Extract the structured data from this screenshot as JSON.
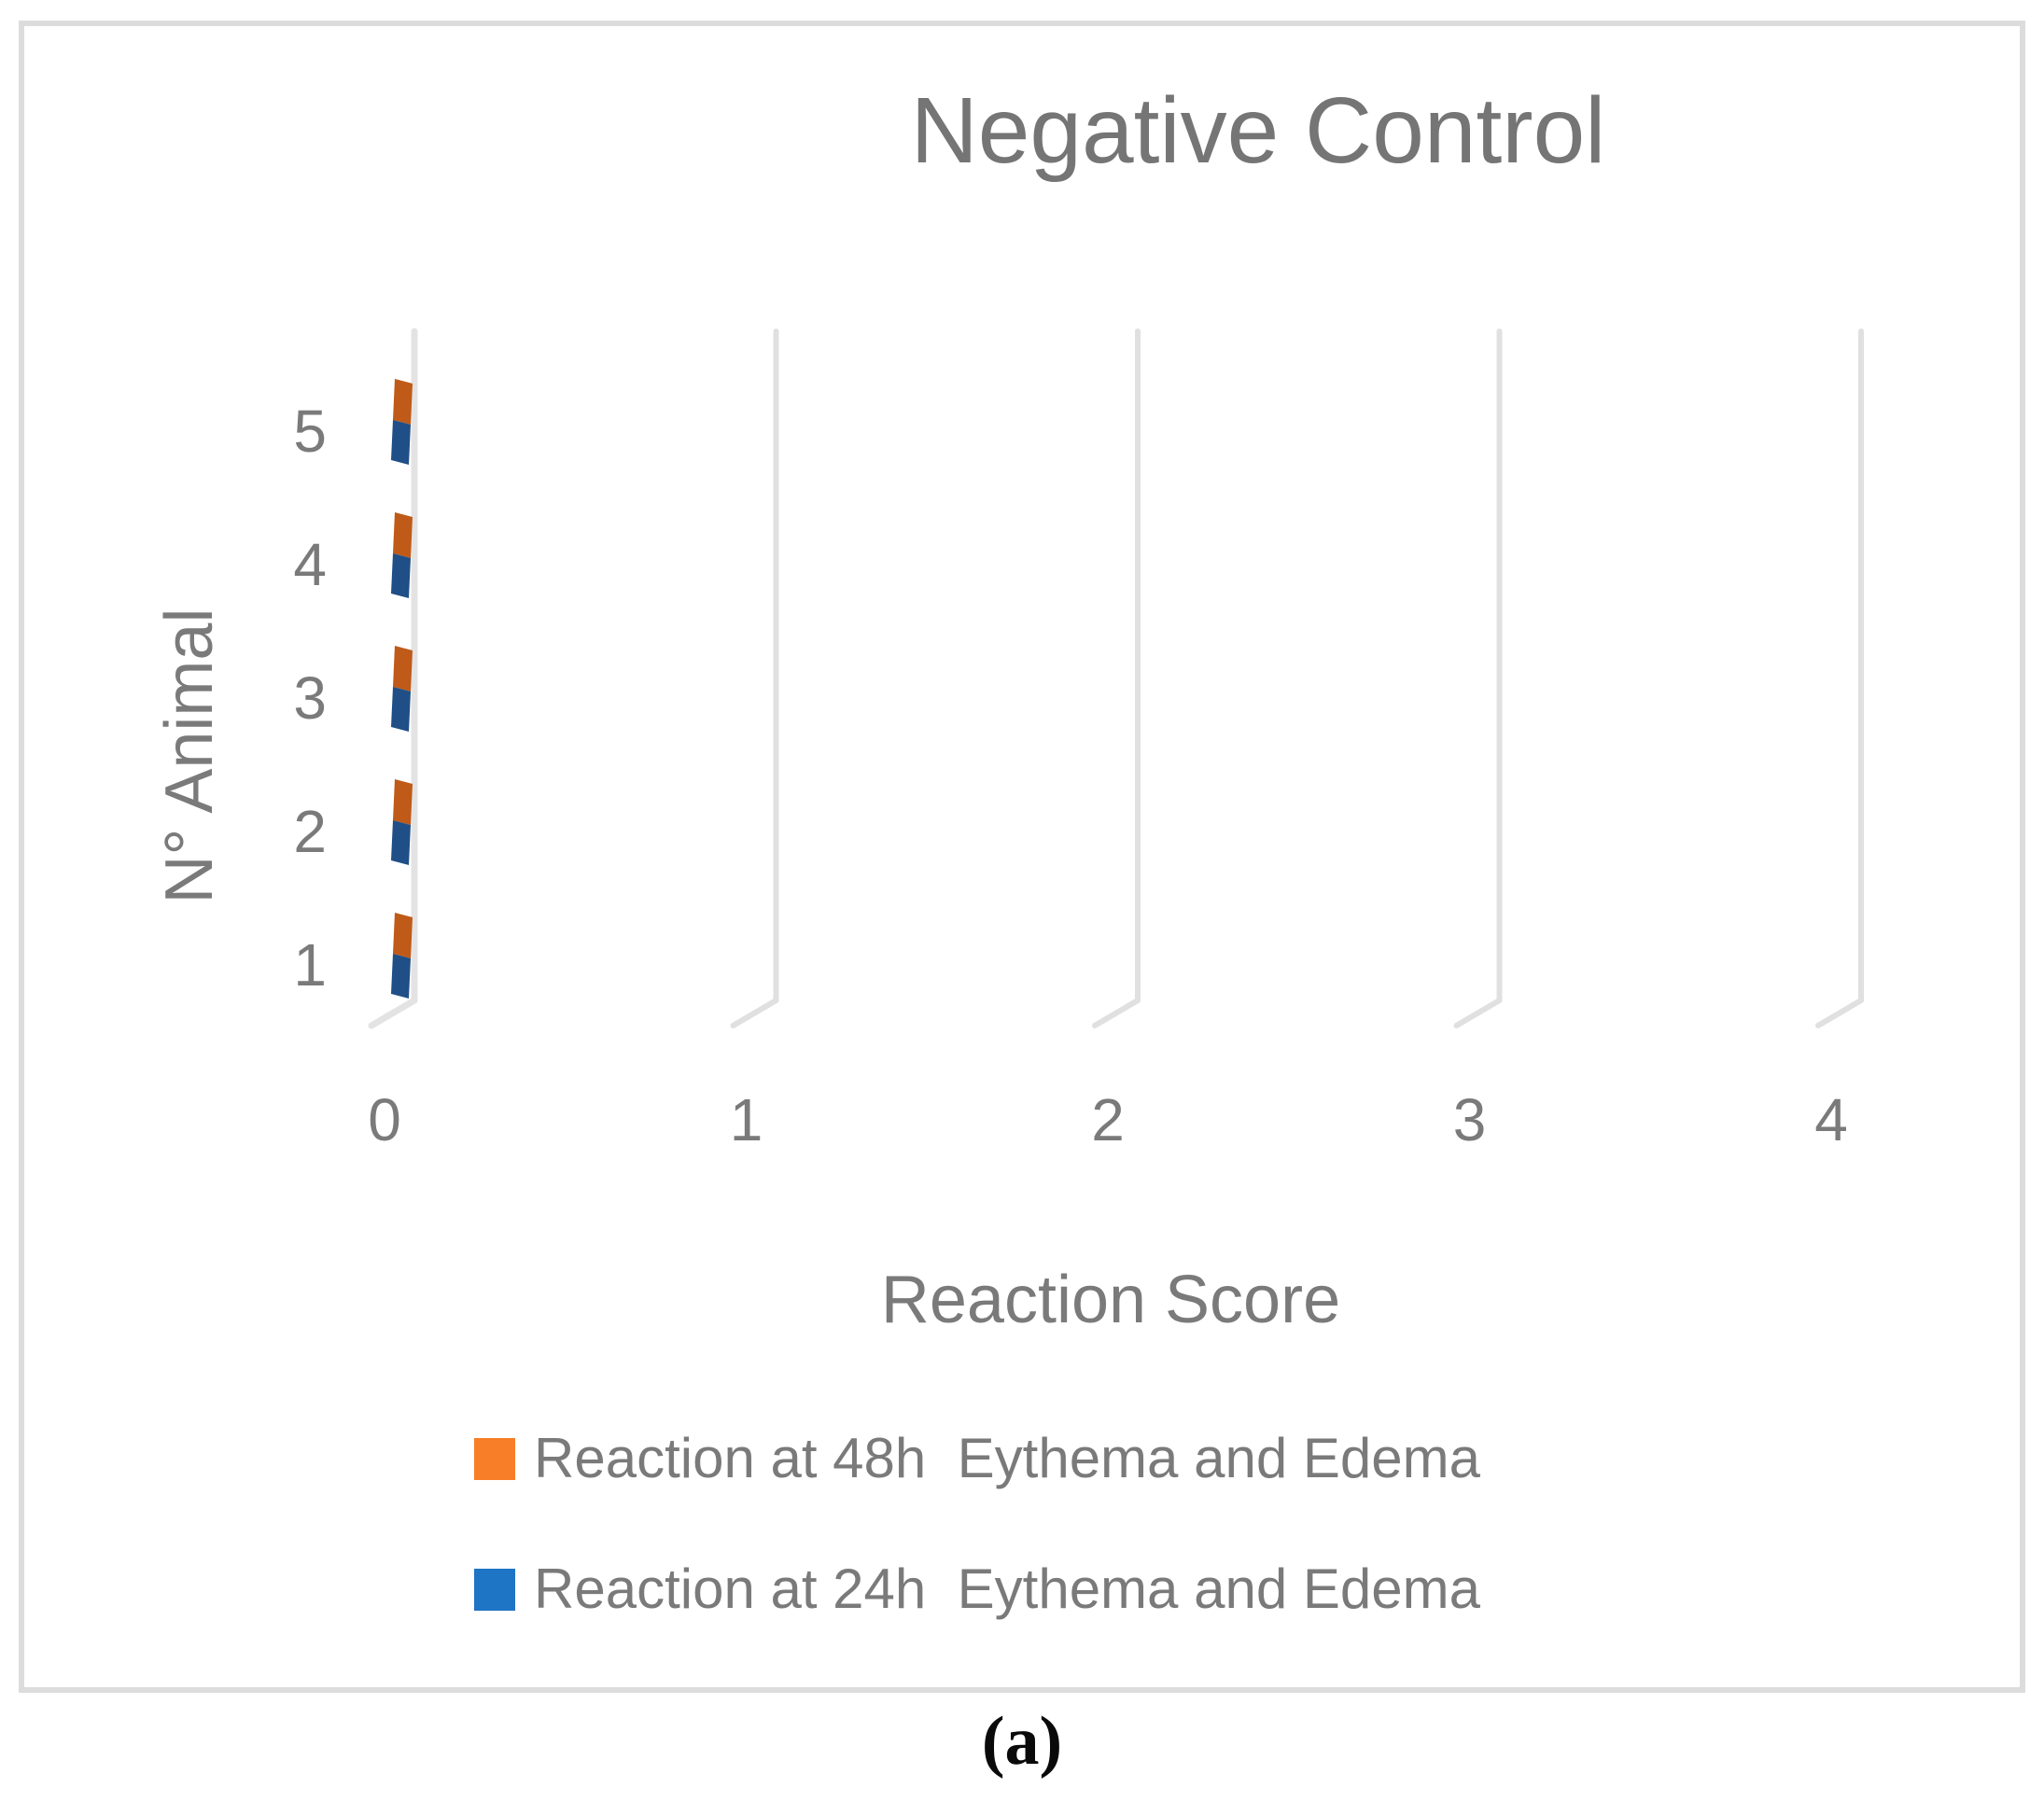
{
  "figure": {
    "caption": "(a)"
  },
  "chart_data": {
    "type": "bar",
    "orientation": "horizontal",
    "projection": "3d",
    "title": "Negative Control",
    "xlabel": "Reaction Score",
    "ylabel": "N° Animal",
    "categories": [
      "1",
      "2",
      "3",
      "4",
      "5"
    ],
    "category_display_order_top_to_bottom": [
      "5",
      "4",
      "3",
      "2",
      "1"
    ],
    "x_ticks": [
      "0",
      "1",
      "2",
      "3",
      "4"
    ],
    "xlim": [
      0,
      4
    ],
    "grid": true,
    "background": "#FFFFFF",
    "series": [
      {
        "name": "Reaction at 48h  Eythema and Edema",
        "values": [
          0,
          0,
          0,
          0,
          0
        ],
        "swatch_color": "#F87E27",
        "bar_face_color": "#C05A18",
        "stack_position": "top"
      },
      {
        "name": "Reaction at 24h  Eythema and Edema",
        "values": [
          0,
          0,
          0,
          0,
          0
        ],
        "swatch_color": "#1E74C5",
        "bar_face_color": "#1F4F86",
        "stack_position": "bottom"
      }
    ],
    "legend": {
      "position": "bottom-left",
      "entries": [
        {
          "label": "Reaction at 48h  Eythema and Edema",
          "color": "#F87E27"
        },
        {
          "label": "Reaction at 24h  Eythema and Edema",
          "color": "#1E74C5"
        }
      ]
    },
    "colors": {
      "text": "#7A7A7A",
      "title_text": "#757575",
      "gridline": "#E0E0E0",
      "axis_line": "#E3E3E3",
      "frame_border": "#DCDCDC",
      "caption_text": "#0A0A0A"
    }
  }
}
